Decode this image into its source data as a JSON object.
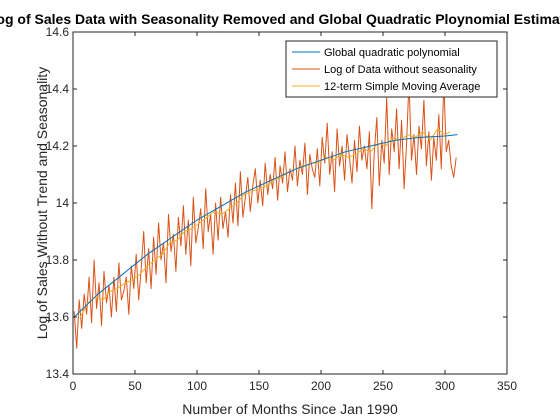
{
  "chart_data": {
    "type": "line",
    "title": "Log of Sales Data with Seasonality Removed and Global Quadratic Ploynomial Estimate",
    "xlabel": "Number of Months Since Jan 1990",
    "ylabel": "Log of Sales Without Trend and Seasonality",
    "xlim": [
      0,
      350
    ],
    "ylim": [
      13.4,
      14.6
    ],
    "xticks": [
      0,
      50,
      100,
      150,
      200,
      250,
      300,
      350
    ],
    "yticks": [
      13.4,
      13.6,
      13.8,
      14,
      14.2,
      14.4,
      14.6
    ],
    "xtick_labels": [
      "0",
      "50",
      "100",
      "150",
      "200",
      "250",
      "300",
      "350"
    ],
    "ytick_labels": [
      "13.4",
      "13.6",
      "13.8",
      "14",
      "14.2",
      "14.4",
      "14.6"
    ],
    "grid": false,
    "legend_position": "top-right",
    "series": [
      {
        "name": "Global quadratic polynomial",
        "color": "#0072BD",
        "x": [
          1,
          20,
          40,
          60,
          80,
          100,
          120,
          140,
          160,
          180,
          200,
          220,
          240,
          260,
          280,
          300,
          310
        ],
        "y": [
          13.6,
          13.68,
          13.75,
          13.82,
          13.88,
          13.94,
          13.99,
          14.04,
          14.08,
          14.12,
          14.15,
          14.18,
          14.2,
          14.22,
          14.23,
          14.235,
          14.24
        ]
      },
      {
        "name": "Log of Data without seasonality",
        "color": "#D95319",
        "x": [
          1,
          3,
          5,
          7,
          9,
          11,
          13,
          15,
          17,
          19,
          21,
          23,
          25,
          27,
          29,
          31,
          33,
          35,
          37,
          39,
          41,
          43,
          45,
          47,
          49,
          51,
          53,
          55,
          57,
          59,
          61,
          63,
          65,
          67,
          69,
          71,
          73,
          75,
          77,
          79,
          81,
          83,
          85,
          87,
          89,
          91,
          93,
          95,
          97,
          99,
          101,
          103,
          105,
          107,
          109,
          111,
          113,
          115,
          117,
          119,
          121,
          123,
          125,
          127,
          129,
          131,
          133,
          135,
          137,
          139,
          141,
          143,
          145,
          147,
          149,
          151,
          153,
          155,
          157,
          159,
          161,
          163,
          165,
          167,
          169,
          171,
          173,
          175,
          177,
          179,
          181,
          183,
          185,
          187,
          189,
          191,
          193,
          195,
          197,
          199,
          201,
          203,
          205,
          207,
          209,
          211,
          213,
          215,
          217,
          219,
          221,
          223,
          225,
          227,
          229,
          231,
          233,
          235,
          237,
          239,
          241,
          243,
          245,
          247,
          249,
          251,
          253,
          255,
          257,
          259,
          261,
          263,
          265,
          267,
          269,
          271,
          273,
          275,
          277,
          279,
          281,
          283,
          285,
          287,
          289,
          291,
          293,
          295,
          297,
          299,
          301,
          303,
          305,
          307,
          309
        ],
        "y": [
          13.62,
          13.49,
          13.66,
          13.56,
          13.68,
          13.61,
          13.74,
          13.58,
          13.8,
          13.63,
          13.72,
          13.57,
          13.76,
          13.65,
          13.71,
          13.6,
          13.74,
          13.62,
          13.79,
          13.66,
          13.69,
          13.74,
          13.61,
          13.78,
          13.7,
          13.82,
          13.66,
          13.77,
          13.9,
          13.72,
          13.84,
          13.7,
          13.88,
          13.75,
          13.93,
          13.8,
          13.86,
          13.72,
          13.96,
          13.83,
          13.89,
          13.76,
          13.95,
          13.85,
          13.99,
          13.82,
          13.94,
          13.78,
          14.02,
          13.86,
          13.91,
          13.98,
          13.84,
          14.05,
          13.9,
          13.96,
          13.82,
          14.0,
          13.87,
          14.02,
          13.91,
          13.97,
          13.88,
          14.03,
          13.93,
          14.07,
          13.92,
          14.11,
          13.95,
          14.02,
          14.09,
          13.97,
          14.06,
          14.12,
          14.0,
          14.08,
          13.99,
          14.14,
          14.03,
          14.1,
          14.05,
          14.16,
          14.01,
          14.13,
          14.07,
          14.18,
          14.04,
          14.12,
          14.08,
          14.2,
          14.06,
          14.15,
          14.1,
          14.21,
          14.03,
          14.17,
          14.12,
          14.09,
          14.19,
          14.06,
          14.23,
          14.14,
          14.28,
          14.1,
          14.18,
          14.04,
          14.26,
          14.13,
          14.2,
          14.08,
          14.24,
          14.16,
          14.07,
          14.22,
          14.11,
          14.27,
          14.15,
          14.2,
          14.12,
          14.25,
          13.98,
          14.18,
          14.3,
          14.06,
          14.22,
          14.14,
          14.37,
          14.1,
          14.26,
          14.18,
          14.33,
          14.12,
          14.29,
          14.05,
          14.21,
          14.43,
          14.15,
          14.24,
          14.1,
          14.27,
          14.19,
          14.36,
          14.13,
          14.25,
          14.08,
          14.23,
          14.15,
          14.31,
          14.12,
          14.43,
          14.18,
          14.22,
          14.13,
          14.09,
          14.16
        ]
      },
      {
        "name": "12-term Simple Moving Average",
        "color": "#EDB120",
        "x": [
          6,
          12,
          18,
          24,
          30,
          36,
          42,
          48,
          54,
          60,
          66,
          72,
          78,
          84,
          90,
          96,
          102,
          108,
          114,
          120,
          126,
          132,
          138,
          144,
          150,
          156,
          162,
          168,
          174,
          180,
          186,
          192,
          198,
          204,
          210,
          216,
          222,
          228,
          234,
          240,
          246,
          252,
          258,
          264,
          270,
          276,
          282,
          288,
          294,
          300,
          304
        ],
        "y": [
          13.6,
          13.65,
          13.67,
          13.66,
          13.69,
          13.7,
          13.72,
          13.73,
          13.75,
          13.78,
          13.8,
          13.82,
          13.86,
          13.87,
          13.9,
          13.91,
          13.93,
          13.95,
          13.97,
          13.96,
          13.98,
          14.0,
          14.03,
          14.04,
          14.05,
          14.06,
          14.08,
          14.09,
          14.11,
          14.12,
          14.13,
          14.14,
          14.14,
          14.16,
          14.15,
          14.17,
          14.16,
          14.17,
          14.19,
          14.18,
          14.21,
          14.2,
          14.23,
          14.22,
          14.24,
          14.23,
          14.25,
          14.22,
          14.26,
          14.24,
          14.25
        ]
      }
    ]
  }
}
